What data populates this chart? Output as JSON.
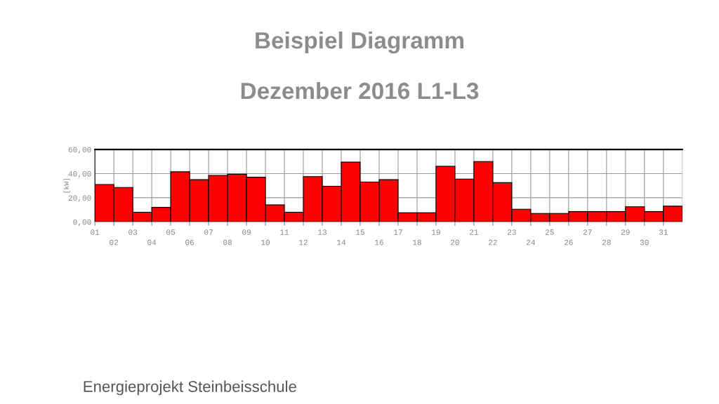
{
  "chart_data": {
    "type": "bar",
    "title": "Beispiel Diagramm",
    "subtitle": "Dezember 2016 L1-L3",
    "ylabel": "[kW]",
    "categories": [
      "01",
      "02",
      "03",
      "04",
      "05",
      "06",
      "07",
      "08",
      "09",
      "10",
      "11",
      "12",
      "13",
      "14",
      "15",
      "16",
      "17",
      "18",
      "19",
      "20",
      "21",
      "22",
      "23",
      "24",
      "25",
      "26",
      "27",
      "28",
      "29",
      "30",
      "31"
    ],
    "values": [
      31,
      28.5,
      8,
      12,
      41.5,
      35,
      38.5,
      39.5,
      37,
      14,
      8,
      37.5,
      29.5,
      49.5,
      33,
      35,
      7.5,
      7.5,
      46,
      35.5,
      50,
      32.5,
      10.5,
      7,
      7,
      8.5,
      8.5,
      8.5,
      12.5,
      8.5,
      13
    ],
    "color": "#ff0000",
    "ylim": [
      0,
      60
    ],
    "yticks": [
      {
        "value": 0,
        "label": "0,00"
      },
      {
        "value": 20,
        "label": "20,00"
      },
      {
        "value": 40,
        "label": "40,00"
      },
      {
        "value": 60,
        "label": "60,00"
      }
    ],
    "grid": true,
    "annotations": [
      "Energieprojekt Steinbeisschule"
    ]
  }
}
